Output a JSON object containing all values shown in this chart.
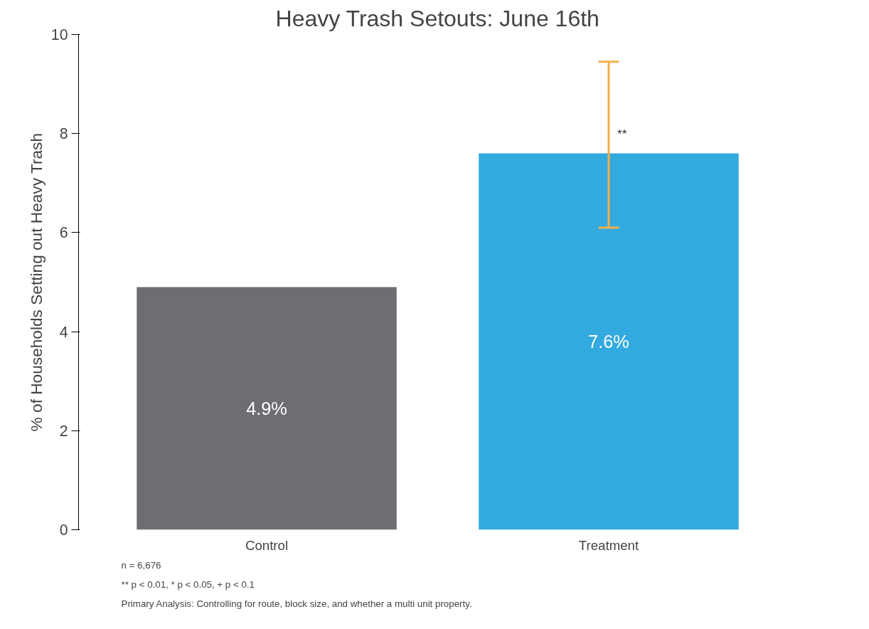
{
  "chart_data": {
    "type": "bar",
    "title": "Heavy Trash Setouts: June 16th",
    "ylabel": "% of Households Setting out Heavy Trash",
    "categories": [
      "Control",
      "Treatment"
    ],
    "values": [
      4.9,
      7.6
    ],
    "colors": [
      "#6d6e71",
      "#33aadf"
    ],
    "value_labels": [
      "4.9%",
      "7.6%"
    ],
    "errors": [
      null,
      [
        6.1,
        9.45
      ]
    ],
    "ylim": [
      0,
      10
    ],
    "yticks": [
      0,
      2,
      4,
      6,
      8,
      10
    ],
    "grid": false,
    "annotations": [
      {
        "text": "**",
        "x": "Treatment",
        "y": 8.0
      },
      "n = 6,676",
      "** p < 0.01, * p < 0.05, + p < 0.1",
      "Primary Analysis: Controlling for route, block size, and whether a multi unit property."
    ]
  }
}
